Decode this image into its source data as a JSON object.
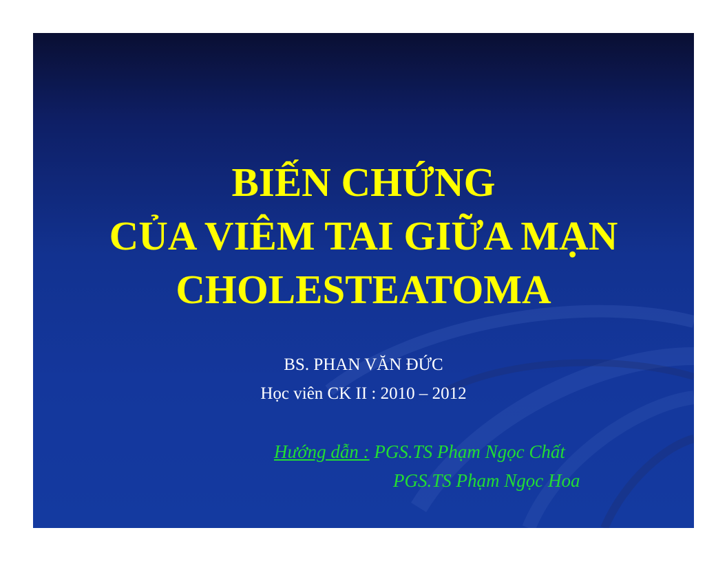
{
  "slide": {
    "background_color": "#14379c",
    "title_color": "#ffff00",
    "title_lines": [
      "BIẾN CHỨNG",
      "CỦA VIÊM TAI GIỮA MẠN",
      "CHOLESTEATOMA"
    ],
    "author": {
      "name": "BS. PHAN VĂN ĐỨC",
      "course": "Học viên CK II : 2010 – 2012"
    },
    "advisors": {
      "color": "#22dd33",
      "label": "Hướng dẫn :",
      "first": "PGS.TS Phạm Ngọc Chất",
      "second": "PGS.TS Phạm Ngọc Hoa"
    }
  }
}
